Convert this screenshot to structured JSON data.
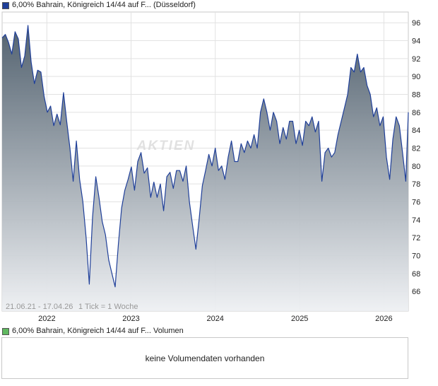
{
  "price_legend": {
    "label": "6,00% Bahrain, Königreich 14/44 auf F... (Düsseldorf)",
    "color": "#1f3f99"
  },
  "volume_legend": {
    "label": "6,00% Bahrain, Königreich 14/44 auf F... Volumen",
    "color": "#5fb85f"
  },
  "range_note": "21.06.21 - 17.04.26",
  "tick_note": "1 Tick = 1 Woche",
  "volume_message": "keine Volumendaten vorhanden",
  "watermark": "AKTIEN",
  "colors": {
    "line": "#1f3f99",
    "area_top": "#4a5a68",
    "area_bottom": "#eef0f3",
    "grid": "#e2e2e2"
  },
  "chart_data": {
    "type": "area",
    "title": "6,00% Bahrain, Königreich 14/44 auf F... (Düsseldorf)",
    "x_range": [
      "2021-06-21",
      "2026-04-17"
    ],
    "x_ticks": [
      "2022",
      "2023",
      "2024",
      "2025",
      "2026"
    ],
    "x_tick_dates": [
      "2022-01-01",
      "2023-01-01",
      "2024-01-01",
      "2025-01-01",
      "2026-01-01"
    ],
    "y_ticks": [
      66,
      68,
      70,
      72,
      74,
      76,
      78,
      80,
      82,
      84,
      86,
      88,
      90,
      92,
      94,
      96
    ],
    "ylim": [
      63.8,
      97.2
    ],
    "y_axis_side": "right",
    "grid": true,
    "series": [
      {
        "name": "6,00% Bahrain, Königreich 14/44 auf F... (Düsseldorf)",
        "points": [
          [
            "2021-06-21",
            94.3
          ],
          [
            "2021-07-05",
            94.7
          ],
          [
            "2021-07-19",
            93.8
          ],
          [
            "2021-08-02",
            92.5
          ],
          [
            "2021-08-16",
            95.0
          ],
          [
            "2021-08-30",
            94.2
          ],
          [
            "2021-09-13",
            91.0
          ],
          [
            "2021-09-27",
            92.3
          ],
          [
            "2021-10-11",
            95.7
          ],
          [
            "2021-10-25",
            91.6
          ],
          [
            "2021-11-08",
            89.2
          ],
          [
            "2021-11-22",
            90.7
          ],
          [
            "2021-12-06",
            90.5
          ],
          [
            "2021-12-20",
            87.8
          ],
          [
            "2022-01-03",
            86.0
          ],
          [
            "2022-01-17",
            86.7
          ],
          [
            "2022-01-31",
            84.5
          ],
          [
            "2022-02-14",
            85.8
          ],
          [
            "2022-02-28",
            84.6
          ],
          [
            "2022-03-14",
            88.2
          ],
          [
            "2022-03-28",
            85.0
          ],
          [
            "2022-04-11",
            82.0
          ],
          [
            "2022-04-25",
            78.3
          ],
          [
            "2022-05-09",
            82.8
          ],
          [
            "2022-05-23",
            78.5
          ],
          [
            "2022-06-06",
            76.0
          ],
          [
            "2022-06-20",
            72.0
          ],
          [
            "2022-07-04",
            66.8
          ],
          [
            "2022-07-18",
            74.3
          ],
          [
            "2022-08-01",
            78.8
          ],
          [
            "2022-08-15",
            76.5
          ],
          [
            "2022-08-29",
            73.8
          ],
          [
            "2022-09-12",
            72.3
          ],
          [
            "2022-09-26",
            69.5
          ],
          [
            "2022-10-10",
            68.0
          ],
          [
            "2022-10-24",
            66.5
          ],
          [
            "2022-11-07",
            71.3
          ],
          [
            "2022-11-21",
            75.3
          ],
          [
            "2022-12-05",
            77.3
          ],
          [
            "2022-12-19",
            78.5
          ],
          [
            "2023-01-02",
            79.9
          ],
          [
            "2023-01-16",
            77.3
          ],
          [
            "2023-01-30",
            80.5
          ],
          [
            "2023-02-13",
            81.5
          ],
          [
            "2023-02-27",
            79.2
          ],
          [
            "2023-03-13",
            79.8
          ],
          [
            "2023-03-27",
            76.5
          ],
          [
            "2023-04-10",
            78.2
          ],
          [
            "2023-04-24",
            76.5
          ],
          [
            "2023-05-08",
            78.0
          ],
          [
            "2023-05-22",
            75.0
          ],
          [
            "2023-06-05",
            78.8
          ],
          [
            "2023-06-19",
            79.3
          ],
          [
            "2023-07-03",
            77.5
          ],
          [
            "2023-07-17",
            79.5
          ],
          [
            "2023-07-31",
            79.5
          ],
          [
            "2023-08-14",
            78.3
          ],
          [
            "2023-08-28",
            80.0
          ],
          [
            "2023-09-11",
            76.0
          ],
          [
            "2023-09-25",
            73.3
          ],
          [
            "2023-10-09",
            70.7
          ],
          [
            "2023-10-23",
            74.0
          ],
          [
            "2023-11-06",
            77.8
          ],
          [
            "2023-11-20",
            79.5
          ],
          [
            "2023-12-04",
            81.3
          ],
          [
            "2023-12-18",
            80.0
          ],
          [
            "2024-01-01",
            82.0
          ],
          [
            "2024-01-15",
            79.5
          ],
          [
            "2024-01-29",
            80.0
          ],
          [
            "2024-02-12",
            78.5
          ],
          [
            "2024-02-26",
            81.0
          ],
          [
            "2024-03-11",
            82.8
          ],
          [
            "2024-03-25",
            80.5
          ],
          [
            "2024-04-08",
            80.5
          ],
          [
            "2024-04-22",
            82.5
          ],
          [
            "2024-05-06",
            81.5
          ],
          [
            "2024-05-20",
            82.8
          ],
          [
            "2024-06-03",
            82.0
          ],
          [
            "2024-06-17",
            83.5
          ],
          [
            "2024-07-01",
            82.0
          ],
          [
            "2024-07-15",
            86.0
          ],
          [
            "2024-07-29",
            87.5
          ],
          [
            "2024-08-12",
            86.0
          ],
          [
            "2024-08-26",
            84.0
          ],
          [
            "2024-09-09",
            86.0
          ],
          [
            "2024-09-23",
            85.0
          ],
          [
            "2024-10-07",
            82.5
          ],
          [
            "2024-10-21",
            84.3
          ],
          [
            "2024-11-04",
            83.0
          ],
          [
            "2024-11-18",
            85.0
          ],
          [
            "2024-12-02",
            85.0
          ],
          [
            "2024-12-16",
            82.5
          ],
          [
            "2024-12-30",
            84.0
          ],
          [
            "2025-01-13",
            82.3
          ],
          [
            "2025-01-27",
            85.0
          ],
          [
            "2025-02-10",
            84.5
          ],
          [
            "2025-02-24",
            85.5
          ],
          [
            "2025-03-10",
            83.8
          ],
          [
            "2025-03-24",
            85.0
          ],
          [
            "2025-04-07",
            78.3
          ],
          [
            "2025-04-21",
            81.5
          ],
          [
            "2025-05-05",
            82.0
          ],
          [
            "2025-05-19",
            81.0
          ],
          [
            "2025-06-02",
            81.5
          ],
          [
            "2025-06-16",
            83.5
          ],
          [
            "2025-06-30",
            85.0
          ],
          [
            "2025-07-14",
            86.5
          ],
          [
            "2025-07-28",
            88.0
          ],
          [
            "2025-08-11",
            91.0
          ],
          [
            "2025-08-25",
            90.5
          ],
          [
            "2025-09-08",
            92.5
          ],
          [
            "2025-09-22",
            90.5
          ],
          [
            "2025-10-06",
            91.0
          ],
          [
            "2025-10-20",
            89.0
          ],
          [
            "2025-11-03",
            88.0
          ],
          [
            "2025-11-17",
            85.5
          ],
          [
            "2025-12-01",
            86.5
          ],
          [
            "2025-12-15",
            84.5
          ],
          [
            "2025-12-29",
            85.5
          ],
          [
            "2026-01-12",
            81.0
          ],
          [
            "2026-01-26",
            78.5
          ],
          [
            "2026-02-09",
            83.0
          ],
          [
            "2026-02-23",
            85.5
          ],
          [
            "2026-03-09",
            84.5
          ],
          [
            "2026-03-23",
            81.5
          ],
          [
            "2026-04-06",
            78.3
          ],
          [
            "2026-04-17",
            86.0
          ]
        ]
      }
    ]
  }
}
